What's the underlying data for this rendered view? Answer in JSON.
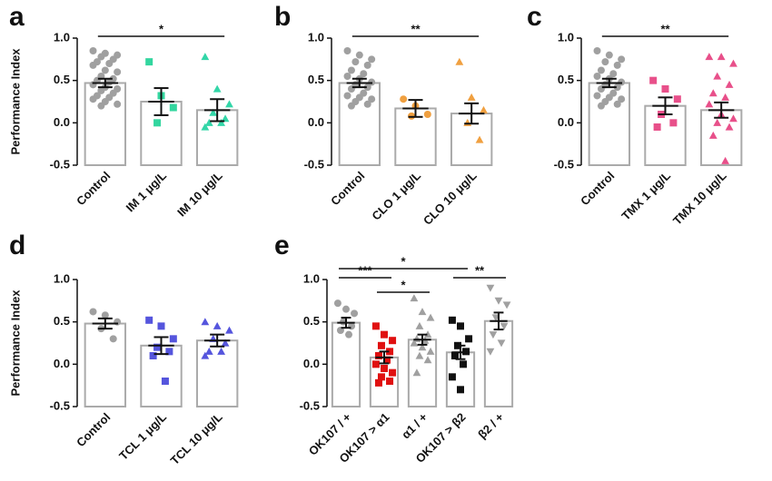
{
  "chart_data": [
    {
      "type": "bar",
      "label": "a",
      "ylabel": "Performance Index",
      "categories": [
        "Control",
        "IM 1 μg/L",
        "IM 10 μg/L"
      ],
      "values": [
        0.47,
        0.25,
        0.15
      ],
      "errors": [
        0.05,
        0.16,
        0.13
      ],
      "points": [
        [
          0.85,
          0.82,
          0.8,
          0.78,
          0.75,
          0.72,
          0.7,
          0.68,
          0.62,
          0.6,
          0.55,
          0.52,
          0.5,
          0.48,
          0.45,
          0.42,
          0.4,
          0.38,
          0.35,
          0.32,
          0.3,
          0.28,
          0.25,
          0.22,
          0.2
        ],
        [
          0.72,
          0.32,
          0.18,
          0.0
        ],
        [
          0.78,
          0.4,
          0.22,
          0.12,
          0.05,
          0.0,
          0.0,
          -0.05
        ]
      ],
      "point_colors": [
        "#a0a0a0",
        "#33d69f",
        "#33d6a8"
      ],
      "point_markers": [
        "circle",
        "square",
        "triangle"
      ],
      "significance": [
        {
          "label": "*",
          "from": 0,
          "to": 2
        }
      ],
      "ylim": [
        -0.5,
        1
      ],
      "yticks": [
        -0.5,
        {
          "value": 0,
          "label": "0.0"
        },
        0.5,
        {
          "value": 1,
          "label": "1.0"
        }
      ]
    },
    {
      "type": "bar",
      "label": "b",
      "categories": [
        "Control",
        "CLO 1 μg/L",
        "CLO 10 μg/L"
      ],
      "values": [
        0.47,
        0.17,
        0.11
      ],
      "errors": [
        0.05,
        0.1,
        0.12
      ],
      "points": [
        [
          0.85,
          0.8,
          0.75,
          0.72,
          0.68,
          0.62,
          0.58,
          0.55,
          0.52,
          0.48,
          0.45,
          0.42,
          0.4,
          0.35,
          0.32,
          0.3,
          0.28,
          0.25,
          0.22,
          0.2
        ],
        [
          0.28,
          0.2,
          0.1,
          0.08
        ],
        [
          0.72,
          0.3,
          0.15,
          0.0,
          -0.2
        ]
      ],
      "point_colors": [
        "#a0a0a0",
        "#f0a040",
        "#f0a040"
      ],
      "point_markers": [
        "circle",
        "circle",
        "triangle"
      ],
      "significance": [
        {
          "label": "**",
          "from": 0,
          "to": 2
        }
      ],
      "ylim": [
        -0.5,
        1
      ],
      "yticks": [
        -0.5,
        {
          "value": 0,
          "label": "0.0"
        },
        0.5,
        {
          "value": 1,
          "label": "1.0"
        }
      ]
    },
    {
      "type": "bar",
      "label": "c",
      "categories": [
        "Control",
        "TMX 1 μg/L",
        "TMX 10 μg/L"
      ],
      "values": [
        0.47,
        0.2,
        0.15
      ],
      "errors": [
        0.05,
        0.1,
        0.09
      ],
      "points": [
        [
          0.85,
          0.8,
          0.75,
          0.72,
          0.68,
          0.62,
          0.58,
          0.55,
          0.52,
          0.48,
          0.45,
          0.42,
          0.4,
          0.35,
          0.32,
          0.3,
          0.28,
          0.25,
          0.22,
          0.2
        ],
        [
          0.5,
          0.4,
          0.28,
          0.1,
          0.0,
          -0.05
        ],
        [
          0.78,
          0.78,
          0.7,
          0.55,
          0.45,
          0.35,
          0.3,
          0.22,
          0.1,
          0.05,
          0.0,
          -0.05,
          -0.15,
          -0.45
        ]
      ],
      "point_colors": [
        "#a0a0a0",
        "#e8508a",
        "#e8508a"
      ],
      "point_markers": [
        "circle",
        "square",
        "triangle"
      ],
      "significance": [
        {
          "label": "**",
          "from": 0,
          "to": 2
        }
      ],
      "ylim": [
        -0.5,
        1
      ],
      "yticks": [
        -0.5,
        {
          "value": 0,
          "label": "0.0"
        },
        0.5,
        {
          "value": 1,
          "label": "1.0"
        }
      ]
    },
    {
      "type": "bar",
      "label": "d",
      "ylabel": "Performance Index",
      "categories": [
        "Control",
        "TCL 1 μg/L",
        "TCL 10 μg/L"
      ],
      "values": [
        0.48,
        0.22,
        0.28
      ],
      "errors": [
        0.06,
        0.1,
        0.07
      ],
      "points": [
        [
          0.62,
          0.58,
          0.5,
          0.42,
          0.3
        ],
        [
          0.52,
          0.45,
          0.3,
          0.2,
          0.15,
          0.1,
          -0.2
        ],
        [
          0.5,
          0.45,
          0.4,
          0.3,
          0.25,
          0.15,
          0.15,
          0.1
        ]
      ],
      "point_colors": [
        "#a0a0a0",
        "#5555dd",
        "#5555dd"
      ],
      "point_markers": [
        "circle",
        "square",
        "triangle"
      ],
      "significance": [],
      "ylim": [
        -0.5,
        1
      ],
      "yticks": [
        -0.5,
        {
          "value": 0,
          "label": "0.0"
        },
        0.5,
        {
          "value": 1,
          "label": "1.0"
        }
      ]
    },
    {
      "type": "bar",
      "label": "e",
      "categories": [
        "OK107 / +",
        "OK107 > α1",
        "α1 / +",
        "OK107 > β2",
        "β2 / +"
      ],
      "values": [
        0.49,
        0.08,
        0.29,
        0.14,
        0.51
      ],
      "errors": [
        0.06,
        0.07,
        0.06,
        0.08,
        0.1
      ],
      "points": [
        [
          0.72,
          0.65,
          0.6,
          0.5,
          0.45,
          0.4,
          0.35
        ],
        [
          0.45,
          0.35,
          0.28,
          0.22,
          0.15,
          0.1,
          0.05,
          0.0,
          -0.05,
          -0.1,
          -0.15,
          -0.2,
          -0.22
        ],
        [
          0.78,
          0.62,
          0.55,
          0.45,
          0.35,
          0.3,
          0.28,
          0.25,
          0.2,
          0.15,
          0.1,
          0.05,
          -0.1
        ],
        [
          0.52,
          0.45,
          0.3,
          0.22,
          0.15,
          0.1,
          0.0,
          -0.15,
          -0.3
        ],
        [
          0.9,
          0.75,
          0.7,
          0.55,
          0.45,
          0.35,
          0.25,
          0.15
        ]
      ],
      "point_colors": [
        "#a0a0a0",
        "#e01010",
        "#a0a0a0",
        "#111111",
        "#a0a0a0"
      ],
      "point_markers": [
        "circle",
        "square",
        "triangle",
        "square",
        "triangle-down"
      ],
      "significance": [
        {
          "label": "***",
          "from": 0,
          "to": 1
        },
        {
          "label": "*",
          "from": 1,
          "to": 2
        },
        {
          "label": "*",
          "from": 0,
          "to": 3
        },
        {
          "label": "**",
          "from": 3,
          "to": 4
        }
      ],
      "ylim": [
        -0.5,
        1
      ],
      "yticks": [
        -0.5,
        {
          "value": 0,
          "label": "0.0"
        },
        0.5,
        {
          "value": 1,
          "label": "1.0"
        }
      ]
    }
  ]
}
